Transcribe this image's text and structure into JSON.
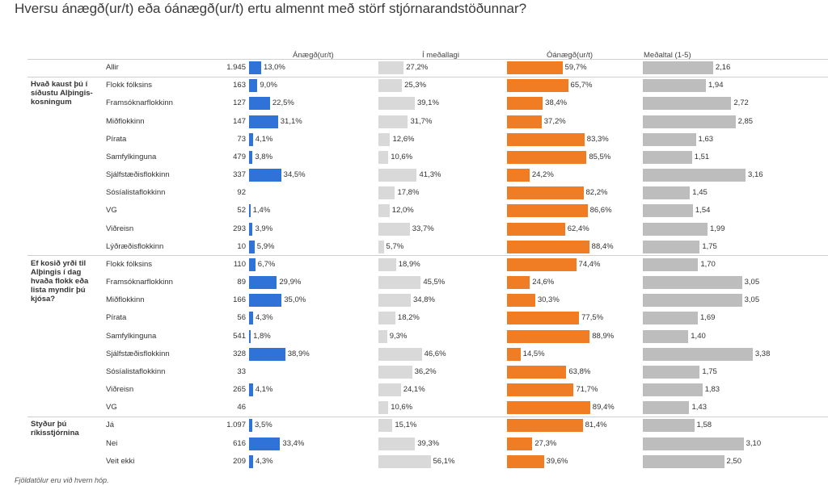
{
  "title": "Hversu ánægð(ur/t) eða óánægð(ur/t) ertu almennt með störf stjórnarandstöðunnar?",
  "footnote": "Fjöldatölur eru við hvern hóp.",
  "colors": {
    "blue": "#2f72d8",
    "light_gray": "#d9d9d9",
    "orange": "#f07c24",
    "gray": "#bdbdbd"
  },
  "chart_data": {
    "type": "bar",
    "columns": [
      "Ánægð(ur/t)",
      "Í meðallagi",
      "Óánægð(ur/t)",
      "Meðaltal (1-5)"
    ],
    "groups": [
      {
        "label": "",
        "rows": [
          {
            "label": "Allir",
            "n": "1.945",
            "anaegd": 13.0,
            "medallagi": 27.2,
            "oanaegd": 59.7,
            "medaltal": 2.16
          }
        ]
      },
      {
        "label": "Hvað kaust þú í síðustu Alþingis-kosningum",
        "rows": [
          {
            "label": "Flokk fólksins",
            "n": "163",
            "anaegd": 9.0,
            "medallagi": 25.3,
            "oanaegd": 65.7,
            "medaltal": 1.94
          },
          {
            "label": "Framsóknarflokkinn",
            "n": "127",
            "anaegd": 22.5,
            "medallagi": 39.1,
            "oanaegd": 38.4,
            "medaltal": 2.72
          },
          {
            "label": "Miðflokkinn",
            "n": "147",
            "anaegd": 31.1,
            "medallagi": 31.7,
            "oanaegd": 37.2,
            "medaltal": 2.85
          },
          {
            "label": "Pírata",
            "n": "73",
            "anaegd": 4.1,
            "medallagi": 12.6,
            "oanaegd": 83.3,
            "medaltal": 1.63
          },
          {
            "label": "Samfylkinguna",
            "n": "479",
            "anaegd": 3.8,
            "medallagi": 10.6,
            "oanaegd": 85.5,
            "medaltal": 1.51
          },
          {
            "label": "Sjálfstæðisflokkinn",
            "n": "337",
            "anaegd": 34.5,
            "medallagi": 41.3,
            "oanaegd": 24.2,
            "medaltal": 3.16
          },
          {
            "label": "Sósíalistaflokkinn",
            "n": "92",
            "anaegd": null,
            "medallagi": 17.8,
            "oanaegd": 82.2,
            "medaltal": 1.45
          },
          {
            "label": "VG",
            "n": "52",
            "anaegd": 1.4,
            "medallagi": 12.0,
            "oanaegd": 86.6,
            "medaltal": 1.54
          },
          {
            "label": "Viðreisn",
            "n": "293",
            "anaegd": 3.9,
            "medallagi": 33.7,
            "oanaegd": 62.4,
            "medaltal": 1.99
          },
          {
            "label": "Lýðræðisflokkinn",
            "n": "10",
            "anaegd": 5.9,
            "medallagi": 5.7,
            "oanaegd": 88.4,
            "medaltal": 1.75
          }
        ]
      },
      {
        "label": "Ef kosið yrði til Alþingis í dag hvaða flokk eða lista myndir þú kjósa?",
        "rows": [
          {
            "label": "Flokk fólksins",
            "n": "110",
            "anaegd": 6.7,
            "medallagi": 18.9,
            "oanaegd": 74.4,
            "medaltal": 1.7
          },
          {
            "label": "Framsóknarflokkinn",
            "n": "89",
            "anaegd": 29.9,
            "medallagi": 45.5,
            "oanaegd": 24.6,
            "medaltal": 3.05
          },
          {
            "label": "Miðflokkinn",
            "n": "166",
            "anaegd": 35.0,
            "medallagi": 34.8,
            "oanaegd": 30.3,
            "medaltal": 3.05
          },
          {
            "label": "Pírata",
            "n": "56",
            "anaegd": 4.3,
            "medallagi": 18.2,
            "oanaegd": 77.5,
            "medaltal": 1.69
          },
          {
            "label": "Samfylkinguna",
            "n": "541",
            "anaegd": 1.8,
            "medallagi": 9.3,
            "oanaegd": 88.9,
            "medaltal": 1.4
          },
          {
            "label": "Sjálfstæðisflokkinn",
            "n": "328",
            "anaegd": 38.9,
            "medallagi": 46.6,
            "oanaegd": 14.5,
            "medaltal": 3.38
          },
          {
            "label": "Sósíalistaflokkinn",
            "n": "33",
            "anaegd": null,
            "medallagi": 36.2,
            "oanaegd": 63.8,
            "medaltal": 1.75
          },
          {
            "label": "Viðreisn",
            "n": "265",
            "anaegd": 4.1,
            "medallagi": 24.1,
            "oanaegd": 71.7,
            "medaltal": 1.83
          },
          {
            "label": "VG",
            "n": "46",
            "anaegd": null,
            "medallagi": 10.6,
            "oanaegd": 89.4,
            "medaltal": 1.43
          }
        ]
      },
      {
        "label": "Styður þú ríkisstjórnina",
        "rows": [
          {
            "label": "Já",
            "n": "1.097",
            "anaegd": 3.5,
            "medallagi": 15.1,
            "oanaegd": 81.4,
            "medaltal": 1.58
          },
          {
            "label": "Nei",
            "n": "616",
            "anaegd": 33.4,
            "medallagi": 39.3,
            "oanaegd": 27.3,
            "medaltal": 3.1
          },
          {
            "label": "Veit ekki",
            "n": "209",
            "anaegd": 4.3,
            "medallagi": 56.1,
            "oanaegd": 39.6,
            "medaltal": 2.5
          }
        ]
      }
    ]
  }
}
